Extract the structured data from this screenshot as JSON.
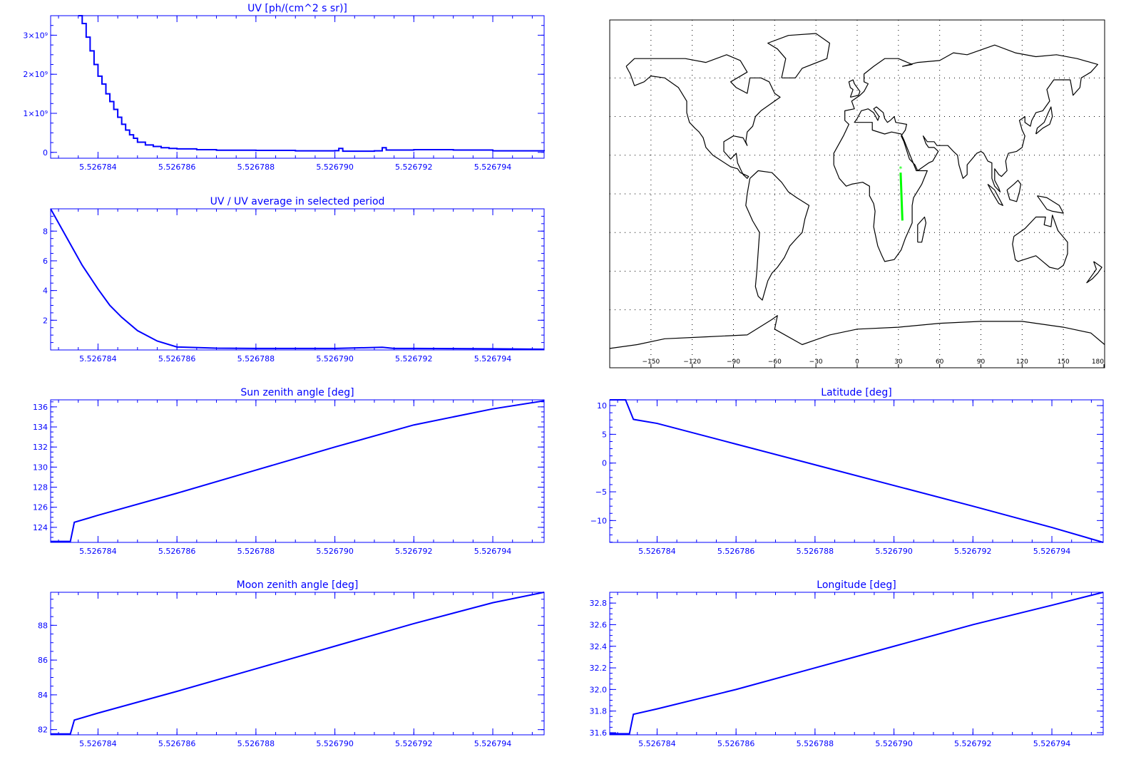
{
  "colors": {
    "axis": "#0000ff",
    "series": "#0000ff",
    "track": "#00ff00",
    "map": "#000000"
  },
  "chart_data": [
    {
      "id": "uv",
      "type": "line",
      "step": true,
      "title": "UV [ph/(cm^2 s sr)]",
      "xlabel": "",
      "ylabel": "",
      "xlim": [
        5.5267828,
        5.5267953
      ],
      "ylim": [
        -150000000,
        3500000000
      ],
      "xticks": [
        5.526784,
        5.526786,
        5.526788,
        5.52679,
        5.526792,
        5.526794
      ],
      "xtick_labels": [
        "5.526784",
        "5.526786",
        "5.526788",
        "5.526790",
        "5.526792",
        "5.526794"
      ],
      "yticks": [
        0,
        1000000000,
        2000000000,
        3000000000
      ],
      "ytick_labels": [
        "0",
        "1×10⁹",
        "2×10⁹",
        "3×10⁹"
      ],
      "x": [
        5.5267835,
        5.5267836,
        5.5267837,
        5.5267838,
        5.5267839,
        5.526784,
        5.5267841,
        5.5267842,
        5.5267843,
        5.5267844,
        5.5267845,
        5.5267846,
        5.5267847,
        5.5267848,
        5.5267849,
        5.526785,
        5.5267852,
        5.5267854,
        5.5267856,
        5.5267858,
        5.526786,
        5.5267865,
        5.526787,
        5.526788,
        5.526789,
        5.52679,
        5.5267901,
        5.5267902,
        5.526791,
        5.5267912,
        5.5267913,
        5.526792,
        5.526793,
        5.526794,
        5.5267953
      ],
      "y": [
        3500000000,
        3300000000,
        2950000000,
        2600000000,
        2250000000,
        1950000000,
        1750000000,
        1500000000,
        1300000000,
        1100000000,
        900000000,
        720000000,
        570000000,
        450000000,
        360000000,
        260000000,
        190000000,
        150000000,
        120000000,
        100000000,
        90000000,
        70000000,
        55000000,
        50000000,
        40000000,
        45000000,
        100000000,
        30000000,
        40000000,
        120000000,
        60000000,
        70000000,
        60000000,
        40000000,
        30000000
      ]
    },
    {
      "id": "uv_ratio",
      "type": "line",
      "title": "UV / UV average in selected period",
      "xlabel": "",
      "ylabel": "",
      "xlim": [
        5.5267828,
        5.5267953
      ],
      "ylim": [
        0,
        9.5
      ],
      "xticks": [
        5.526784,
        5.526786,
        5.526788,
        5.52679,
        5.526792,
        5.526794
      ],
      "xtick_labels": [
        "5.526784",
        "5.526786",
        "5.526788",
        "5.526790",
        "5.526792",
        "5.526794"
      ],
      "yticks": [
        2,
        4,
        6,
        8
      ],
      "ytick_labels": [
        "2",
        "4",
        "6",
        "8"
      ],
      "x": [
        5.5267828,
        5.5267832,
        5.5267836,
        5.526784,
        5.5267843,
        5.5267846,
        5.526785,
        5.5267855,
        5.526786,
        5.526787,
        5.526788,
        5.52679,
        5.5267912,
        5.5267915,
        5.526792,
        5.526794,
        5.5267953
      ],
      "y": [
        9.5,
        7.6,
        5.7,
        4.1,
        3.0,
        2.2,
        1.3,
        0.6,
        0.2,
        0.12,
        0.1,
        0.1,
        0.18,
        0.1,
        0.1,
        0.08,
        0.05
      ]
    },
    {
      "id": "sun_zenith",
      "type": "line",
      "title": "Sun zenith angle [deg]",
      "xlabel": "",
      "ylabel": "",
      "xlim": [
        5.5267828,
        5.5267953
      ],
      "ylim": [
        122.5,
        136.7
      ],
      "xticks": [
        5.526784,
        5.526786,
        5.526788,
        5.52679,
        5.526792,
        5.526794
      ],
      "xtick_labels": [
        "5.526784",
        "5.526786",
        "5.526788",
        "5.526790",
        "5.526792",
        "5.526794"
      ],
      "yticks": [
        124,
        126,
        128,
        130,
        132,
        134,
        136
      ],
      "ytick_labels": [
        "124",
        "126",
        "128",
        "130",
        "132",
        "134",
        "136"
      ],
      "x": [
        5.5267828,
        5.5267833,
        5.5267834,
        5.526784,
        5.526786,
        5.526788,
        5.52679,
        5.526792,
        5.526794,
        5.5267953
      ],
      "y": [
        122.6,
        122.6,
        124.5,
        125.2,
        127.4,
        129.7,
        132.0,
        134.2,
        135.8,
        136.6
      ]
    },
    {
      "id": "latitude",
      "type": "line",
      "title": "Latitude [deg]",
      "xlabel": "",
      "ylabel": "",
      "xlim": [
        5.5267828,
        5.5267953
      ],
      "ylim": [
        -13.8,
        11.0
      ],
      "xticks": [
        5.526784,
        5.526786,
        5.526788,
        5.52679,
        5.526792,
        5.526794
      ],
      "xtick_labels": [
        "5.526784",
        "5.526786",
        "5.526788",
        "5.526790",
        "5.526792",
        "5.526794"
      ],
      "yticks": [
        -10,
        -5,
        0,
        5,
        10
      ],
      "ytick_labels": [
        "−10",
        "−5",
        "0",
        "5",
        "10"
      ],
      "x": [
        5.5267828,
        5.5267832,
        5.5267834,
        5.526784,
        5.526786,
        5.526788,
        5.52679,
        5.526792,
        5.526794,
        5.5267953
      ],
      "y": [
        11.0,
        11.0,
        7.6,
        6.9,
        3.3,
        -0.3,
        -3.9,
        -7.5,
        -11.2,
        -13.8
      ]
    },
    {
      "id": "moon_zenith",
      "type": "line",
      "title": "Moon zenith angle [deg]",
      "xlabel": "",
      "ylabel": "",
      "xlim": [
        5.5267828,
        5.5267953
      ],
      "ylim": [
        81.7,
        89.9
      ],
      "xticks": [
        5.526784,
        5.526786,
        5.526788,
        5.52679,
        5.526792,
        5.526794
      ],
      "xtick_labels": [
        "5.526784",
        "5.526786",
        "5.526788",
        "5.526790",
        "5.526792",
        "5.526794"
      ],
      "yticks": [
        82,
        84,
        86,
        88
      ],
      "ytick_labels": [
        "82",
        "84",
        "86",
        "88"
      ],
      "x": [
        5.5267828,
        5.5267833,
        5.5267834,
        5.526784,
        5.526786,
        5.526788,
        5.52679,
        5.526792,
        5.526794,
        5.5267953
      ],
      "y": [
        81.75,
        81.75,
        82.55,
        82.95,
        84.2,
        85.5,
        86.8,
        88.1,
        89.3,
        89.9
      ]
    },
    {
      "id": "longitude",
      "type": "line",
      "title": "Longitude [deg]",
      "xlabel": "",
      "ylabel": "",
      "xlim": [
        5.5267828,
        5.5267953
      ],
      "ylim": [
        31.58,
        32.9
      ],
      "xticks": [
        5.526784,
        5.526786,
        5.526788,
        5.52679,
        5.526792,
        5.526794
      ],
      "xtick_labels": [
        "5.526784",
        "5.526786",
        "5.526788",
        "5.526790",
        "5.526792",
        "5.526794"
      ],
      "yticks": [
        31.6,
        31.8,
        32.0,
        32.2,
        32.4,
        32.6,
        32.8
      ],
      "ytick_labels": [
        "31.6",
        "31.8",
        "32.0",
        "32.2",
        "32.4",
        "32.6",
        "32.8"
      ],
      "x": [
        5.5267828,
        5.5267833,
        5.5267834,
        5.526784,
        5.526786,
        5.526788,
        5.52679,
        5.526792,
        5.526794,
        5.5267953
      ],
      "y": [
        31.59,
        31.59,
        31.77,
        31.82,
        32.0,
        32.2,
        32.4,
        32.6,
        32.78,
        32.9
      ]
    }
  ],
  "map": {
    "type": "map",
    "projection": "cylindrical",
    "grid": true,
    "xlim": [
      -180,
      180
    ],
    "ylim": [
      -90,
      90
    ],
    "xticks": [
      -150,
      -120,
      -90,
      -60,
      -30,
      0,
      30,
      60,
      90,
      120,
      150,
      180
    ],
    "xtick_labels": [
      "−150",
      "−120",
      "−90",
      "−60",
      "−30",
      "0",
      "30",
      "60",
      "90",
      "120",
      "150",
      "180"
    ],
    "grid_lon": [
      -150,
      -120,
      -90,
      -60,
      -30,
      0,
      30,
      60,
      90,
      120,
      150
    ],
    "grid_lat": [
      -60,
      -40,
      -20,
      0,
      20,
      40,
      60
    ],
    "track": {
      "lon": [
        31.6,
        32.9
      ],
      "lat": [
        11.0,
        -13.8
      ]
    }
  }
}
